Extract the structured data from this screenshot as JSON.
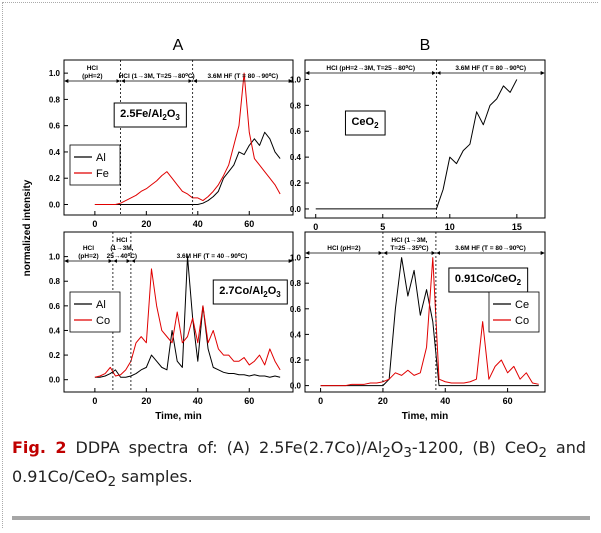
{
  "figure": {
    "panel_titles": [
      "A",
      "B"
    ],
    "y_label": "normalized intensity"
  },
  "chart_data": [
    {
      "type": "line",
      "xlim": [
        -12,
        77
      ],
      "ylim": [
        -0.08,
        1.1
      ],
      "xticks": [
        0,
        20,
        40,
        60
      ],
      "yticks": [
        {
          "value": 0,
          "label": "0.0"
        },
        {
          "value": 0.2,
          "label": "0.2"
        },
        {
          "value": 0.4,
          "label": "0.4"
        },
        {
          "value": 0.6,
          "label": "0.6"
        },
        {
          "value": 0.8,
          "label": "0.8"
        },
        {
          "value": 1,
          "label": "1.0"
        }
      ],
      "x": [
        0,
        2,
        4,
        6,
        8,
        10,
        12,
        14,
        16,
        18,
        20,
        22,
        24,
        26,
        28,
        30,
        32,
        34,
        36,
        38,
        40,
        42,
        44,
        46,
        48,
        50,
        52,
        54,
        56,
        58,
        60,
        62,
        64,
        66,
        68,
        70,
        72
      ],
      "series": [
        {
          "name": "Al",
          "color": "#000000",
          "values": [
            0,
            0,
            0,
            0,
            0,
            0,
            0,
            0,
            0,
            0,
            0,
            0,
            0,
            0,
            0,
            0,
            0,
            0,
            0,
            0,
            0,
            0.01,
            0.03,
            0.06,
            0.1,
            0.2,
            0.25,
            0.3,
            0.4,
            0.38,
            0.45,
            0.5,
            0.45,
            0.55,
            0.5,
            0.4,
            0.35
          ]
        },
        {
          "name": "Fe",
          "color": "#e00000",
          "values": [
            0,
            0,
            0,
            0,
            0,
            0.01,
            0.03,
            0.05,
            0.07,
            0.1,
            0.12,
            0.15,
            0.18,
            0.22,
            0.25,
            0.2,
            0.15,
            0.1,
            0.08,
            0.05,
            0.05,
            0.03,
            0.06,
            0.1,
            0.15,
            0.22,
            0.3,
            0.45,
            0.6,
            1.0,
            0.55,
            0.35,
            0.3,
            0.25,
            0.2,
            0.15,
            0.08
          ]
        }
      ],
      "legend": "lower left",
      "phases": [
        {
          "label": [
            "HCl",
            "(pH=2)"
          ],
          "start": -12,
          "end": 10
        },
        {
          "label": [
            "HCl (1→3M, T=25→80⁰C)"
          ],
          "start": 10,
          "end": 38
        },
        {
          "label": [
            "3.6M HF (T = 80→90⁰C)"
          ],
          "start": 38,
          "end": 77
        }
      ],
      "sample_label": [
        "2.5Fe/Al",
        "2",
        "O",
        "3"
      ]
    },
    {
      "type": "line",
      "xlim": [
        -0.8,
        17.1
      ],
      "ylim": [
        -0.07,
        1.15
      ],
      "xticks": [
        0,
        5,
        10,
        15
      ],
      "yticks": [
        {
          "value": 0,
          "label": "0.0"
        },
        {
          "value": 0.2,
          "label": "0.2"
        },
        {
          "value": 0.4,
          "label": "0.4"
        },
        {
          "value": 0.6,
          "label": "0.6"
        },
        {
          "value": 0.8,
          "label": "0.8"
        },
        {
          "value": 1,
          "label": "1.0"
        }
      ],
      "x": [
        0,
        0.5,
        1,
        1.5,
        2,
        2.5,
        3,
        3.5,
        4,
        4.5,
        5,
        5.5,
        6,
        6.5,
        7,
        7.5,
        8,
        8.5,
        9,
        9.5,
        10,
        10.5,
        11,
        11.5,
        12,
        12.5,
        13,
        13.5,
        14,
        14.5,
        15
      ],
      "series": [
        {
          "color": "#000000",
          "values": [
            0,
            0,
            0,
            0,
            0,
            0,
            0,
            0,
            0,
            0,
            0,
            0,
            0,
            0,
            0,
            0,
            0,
            0,
            0,
            0.15,
            0.4,
            0.35,
            0.45,
            0.5,
            0.75,
            0.65,
            0.8,
            0.85,
            0.95,
            0.9,
            1.0
          ]
        }
      ],
      "phases": [
        {
          "label": [
            "HCl (pH=2→3M, T=25→80⁰C)"
          ],
          "start": -0.8,
          "end": 9
        },
        {
          "label": [
            "3.6M HF (T = 80→90⁰C)"
          ],
          "start": 9,
          "end": 17.1
        }
      ],
      "sample_label": [
        "CeO",
        "2"
      ]
    },
    {
      "type": "line",
      "xlim": [
        -12,
        77
      ],
      "ylim": [
        -0.1,
        1.2
      ],
      "xticks": [
        0,
        20,
        40,
        60
      ],
      "yticks": [
        {
          "value": 0,
          "label": "0.0"
        },
        {
          "value": 0.2,
          "label": "0.2"
        },
        {
          "value": 0.4,
          "label": "0.4"
        },
        {
          "value": 0.6,
          "label": "0.6"
        },
        {
          "value": 0.8,
          "label": "0.8"
        },
        {
          "value": 1,
          "label": "1.0"
        }
      ],
      "x": [
        0,
        2,
        4,
        6,
        8,
        10,
        12,
        14,
        16,
        18,
        20,
        22,
        24,
        26,
        28,
        30,
        32,
        34,
        36,
        38,
        40,
        42,
        44,
        46,
        48,
        50,
        52,
        54,
        56,
        58,
        60,
        62,
        64,
        66,
        68,
        70,
        72
      ],
      "series": [
        {
          "name": "Al",
          "color": "#000000",
          "values": [
            0.02,
            0.02,
            0.03,
            0.05,
            0.08,
            0.02,
            0.02,
            0.03,
            0.05,
            0.08,
            0.1,
            0.2,
            0.15,
            0.1,
            0.08,
            0.4,
            0.15,
            0.1,
            1.0,
            0.5,
            0.15,
            0.6,
            0.25,
            0.1,
            0.08,
            0.06,
            0.05,
            0.05,
            0.04,
            0.04,
            0.03,
            0.04,
            0.03,
            0.03,
            0.02,
            0.03,
            0.02
          ]
        },
        {
          "name": "Co",
          "color": "#e00000",
          "values": [
            0.02,
            0.03,
            0.05,
            0.1,
            0.03,
            0.04,
            0.08,
            0.15,
            0.3,
            0.35,
            0.3,
            0.9,
            0.6,
            0.4,
            0.35,
            0.3,
            0.55,
            0.3,
            0.35,
            0.5,
            0.3,
            0.6,
            0.3,
            0.4,
            0.25,
            0.2,
            0.2,
            0.15,
            0.15,
            0.18,
            0.12,
            0.15,
            0.2,
            0.12,
            0.25,
            0.15,
            0.08
          ]
        }
      ],
      "legend": "center left",
      "xlabel": "Time, min",
      "phases": [
        {
          "label": [
            "HCl",
            "(pH=2)"
          ],
          "start": -12,
          "end": 7
        },
        {
          "label": [
            "HCl",
            "(1→3M,",
            "25→40⁰C)"
          ],
          "start": 7,
          "end": 14
        },
        {
          "label": [
            "3.6M HF (T = 40→90⁰C)"
          ],
          "start": 14,
          "end": 77
        }
      ],
      "sample_label": [
        "2.7Co/Al",
        "2",
        "O",
        "3"
      ]
    },
    {
      "type": "line",
      "xlim": [
        -5,
        72
      ],
      "ylim": [
        -0.05,
        1.2
      ],
      "xticks": [
        0,
        20,
        40,
        60
      ],
      "yticks": [
        {
          "value": 0,
          "label": "0.0"
        },
        {
          "value": 0.2,
          "label": "0.2"
        },
        {
          "value": 0.4,
          "label": "0.4"
        },
        {
          "value": 0.6,
          "label": "0.6"
        },
        {
          "value": 0.8,
          "label": "0.8"
        },
        {
          "value": 1,
          "label": "1.0"
        }
      ],
      "x": [
        0,
        2,
        4,
        6,
        8,
        10,
        12,
        14,
        16,
        18,
        20,
        22,
        24,
        26,
        28,
        30,
        32,
        34,
        36,
        38,
        40,
        42,
        44,
        46,
        48,
        50,
        52,
        54,
        56,
        58,
        60,
        62,
        64,
        66,
        68,
        70
      ],
      "series": [
        {
          "name": "Ce",
          "color": "#000000",
          "values": [
            0,
            0,
            0,
            0,
            0,
            0,
            0,
            0,
            0,
            0,
            0,
            0.05,
            0.6,
            1.0,
            0.7,
            0.9,
            0.55,
            0.75,
            0.5,
            0,
            0,
            0,
            0,
            0,
            0,
            0,
            0,
            0,
            0,
            0,
            0,
            0,
            0,
            0,
            0,
            0
          ]
        },
        {
          "name": "Co",
          "color": "#e00000",
          "values": [
            0,
            0,
            0,
            0,
            0,
            0.01,
            0.01,
            0.01,
            0.02,
            0.02,
            0.03,
            0.05,
            0.1,
            0.08,
            0.12,
            0.08,
            0.1,
            0.3,
            1.0,
            0.05,
            0.03,
            0.02,
            0.02,
            0.02,
            0.03,
            0.05,
            0.5,
            0.05,
            0.15,
            0.2,
            0.1,
            0.15,
            0.05,
            0.1,
            0.02,
            0.01
          ]
        }
      ],
      "legend": "center right",
      "xlabel": "Time, min",
      "phases": [
        {
          "label": [
            "HCl (pH=2)"
          ],
          "start": -5,
          "end": 20
        },
        {
          "label": [
            "HCl (1→3M,",
            "T=25→35⁰C)"
          ],
          "start": 20,
          "end": 37
        },
        {
          "label": [
            "3.6M HF (T = 80→90⁰C)"
          ],
          "start": 37,
          "end": 72
        }
      ],
      "sample_label": [
        "0.91Co/CeO",
        "2"
      ]
    }
  ],
  "caption": [
    "Fig. 2",
    " DDPA spectra of: (A) 2.5Fe(2.7Co)/Al",
    "2",
    "O",
    "3",
    "-1200, (B) CeO",
    "2",
    " and 0.91Co/CeO",
    "2",
    " samples."
  ]
}
